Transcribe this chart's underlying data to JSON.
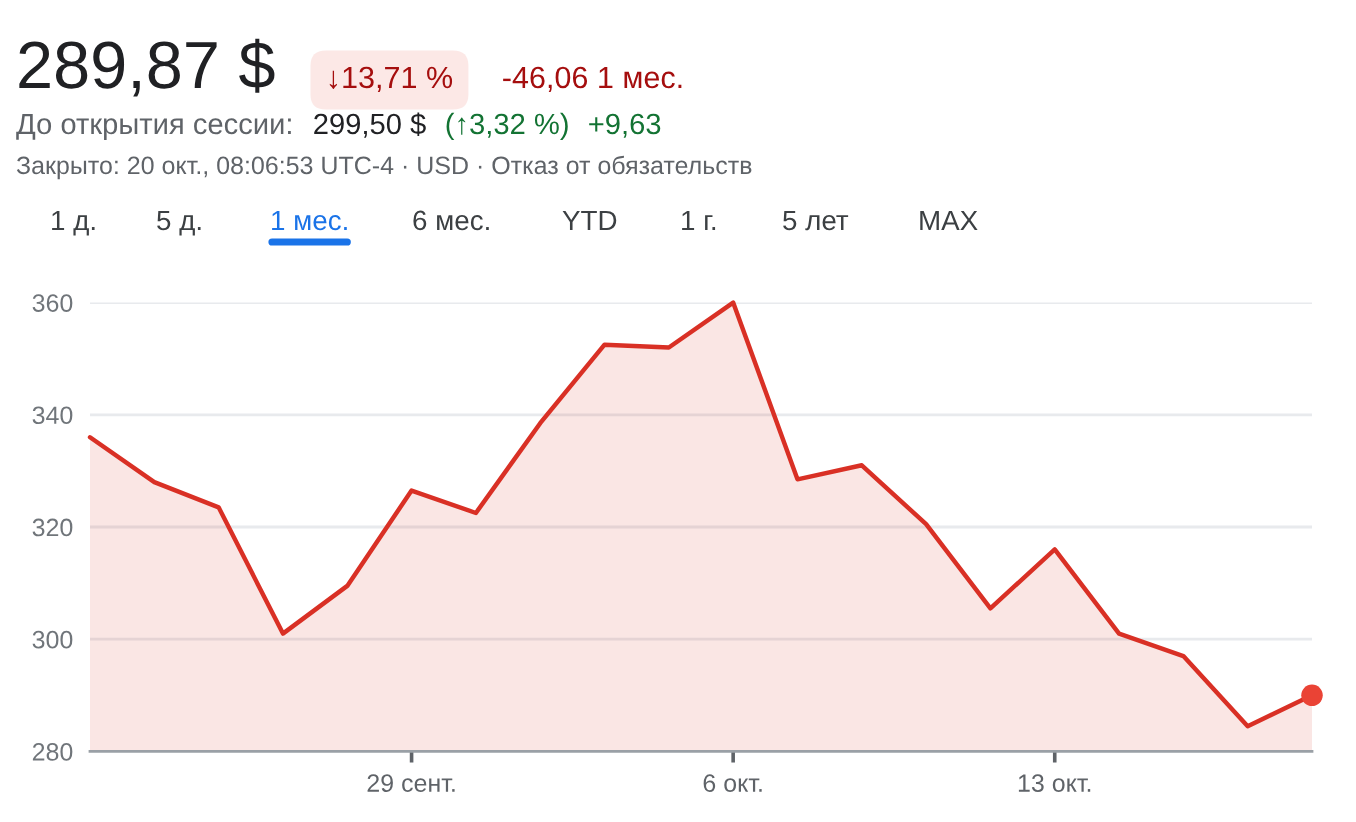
{
  "chart_data": {
    "type": "area",
    "title": "289,87 $",
    "annotations": [
      "↓13,71 %",
      "-46,06 1 мес.",
      "До открытия сессии:",
      "299,50 $",
      "(↑3,32 %)",
      "+9,63",
      "Закрыто: 20 окт., 08:06:53 UTC-4 · USD · Отказ от обязательств",
      "1 д.",
      "5 д.",
      "1 мес.",
      "6 мес.",
      "YTD",
      "1 г.",
      "5 лет",
      "MAX"
    ],
    "categories": [
      null,
      null,
      null,
      null,
      null,
      "29 сент.",
      null,
      null,
      null,
      null,
      "6 окт.",
      null,
      null,
      null,
      null,
      "13 окт.",
      null,
      null,
      null,
      null
    ],
    "series": [
      {
        "color": "#d93025",
        "values": [
          336,
          328,
          323.5,
          301,
          309.5,
          326.5,
          322.5,
          338.5,
          352.5,
          352,
          360,
          328.5,
          331,
          320.5,
          305.5,
          316,
          301,
          297,
          284.5,
          290
        ]
      },
      {
        "type": "scatter",
        "color": "#ea4335",
        "marker": "circle",
        "values": [
          null,
          null,
          null,
          null,
          null,
          null,
          null,
          null,
          null,
          null,
          null,
          null,
          null,
          null,
          null,
          null,
          null,
          null,
          null,
          290
        ]
      }
    ],
    "ylim": [
      280,
      360
    ],
    "yticks": [
      280,
      300,
      320,
      340,
      360
    ],
    "grid": "y"
  }
}
